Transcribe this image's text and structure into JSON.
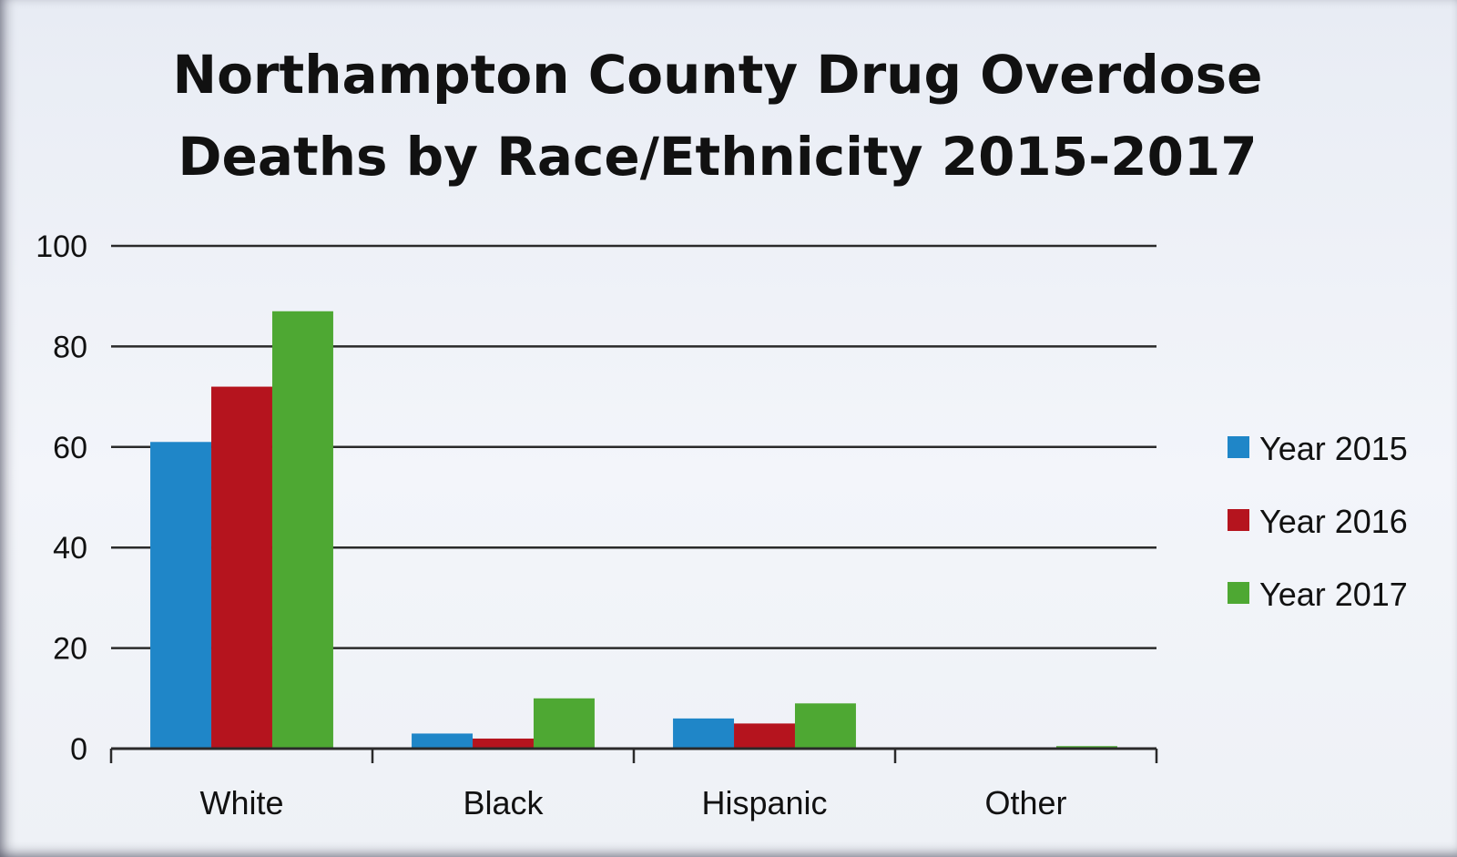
{
  "chart_data": {
    "type": "bar",
    "title_lines": [
      "Northampton County Drug Overdose",
      "Deaths by Race/Ethnicity 2015-2017"
    ],
    "categories": [
      "White",
      "Black",
      "Hispanic",
      "Other"
    ],
    "series": [
      {
        "name": "Year 2015",
        "color": "#1f86c8",
        "values": [
          61,
          3,
          6,
          0
        ]
      },
      {
        "name": "Year 2016",
        "color": "#b5141e",
        "values": [
          72,
          2,
          5,
          0
        ]
      },
      {
        "name": "Year 2017",
        "color": "#4ea833",
        "values": [
          87,
          10,
          9,
          0.5
        ]
      }
    ],
    "ylim": [
      0,
      100
    ],
    "yticks": [
      0,
      20,
      40,
      60,
      80,
      100
    ],
    "grid": true,
    "legend_position": "right"
  }
}
